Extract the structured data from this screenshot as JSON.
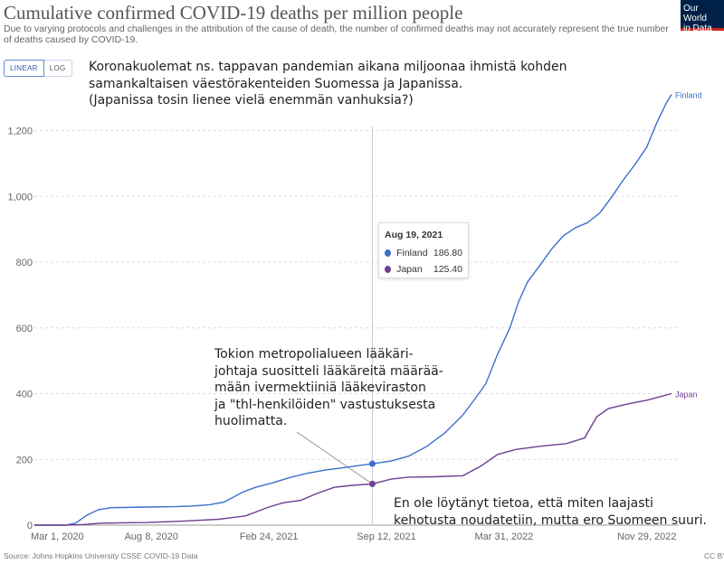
{
  "header": {
    "title": "Cumulative confirmed COVID-19 deaths per million people",
    "subtitle": "Due to varying protocols and challenges in the attribution of the cause of death, the number of confirmed deaths may not accurately represent the true number of deaths caused by COVID-19.",
    "logo_line1": "Our World",
    "logo_line2": "in Data"
  },
  "controls": {
    "linear_label": "LINEAR",
    "log_label": "LOG",
    "active": "linear"
  },
  "annotations": {
    "top": "Koronakuolemat ns. tappavan pandemian aikana miljoonaa ihmistä kohden\nsamankaltaisen väestörakenteiden Suomessa ja Japanissa.\n(Japanissa tosin lienee vielä enemmän vanhuksia?)",
    "middle": "Tokion metropolialueen lääkäri-\njohtaja suositteli lääkäreitä määrää-\nmään ivermektiiniä lääkeviraston\nja \"thl-henkilöiden\" vastustuksesta\nhuolimatta.",
    "bottom": "En ole löytänyt tietoa, että miten laajasti\nkehotusta noudatetiin, mutta ero Suomeen suuri."
  },
  "tooltip": {
    "date": "Aug 19, 2021",
    "rows": [
      {
        "name": "Finland",
        "value": "186.80",
        "color": "#3a6fcb"
      },
      {
        "name": "Japan",
        "value": "125.40",
        "color": "#6d3e91"
      }
    ]
  },
  "footer": {
    "source": "Source: Johns Hopkins University CSSE COVID-19 Data",
    "license": "CC BY"
  },
  "chart_data": {
    "type": "line",
    "xlabel": "",
    "ylabel": "",
    "ylim": [
      0,
      1300
    ],
    "yticks": [
      0,
      200,
      400,
      600,
      800,
      1000,
      1200
    ],
    "xticks": [
      "Mar 1, 2020",
      "Aug 8, 2020",
      "Feb 24, 2021",
      "Sep 12, 2021",
      "Mar 31, 2022",
      "Nov 29, 2022"
    ],
    "xrange": [
      "2020-01-22",
      "2023-01-10"
    ],
    "grid": "horizontal-dashed",
    "series": [
      {
        "name": "Finland",
        "color": "#3a6fcb",
        "points": [
          [
            "2020-01-22",
            0
          ],
          [
            "2020-03-15",
            0
          ],
          [
            "2020-04-01",
            6
          ],
          [
            "2020-04-20",
            30
          ],
          [
            "2020-05-10",
            47
          ],
          [
            "2020-06-01",
            53
          ],
          [
            "2020-08-01",
            55
          ],
          [
            "2020-09-15",
            56
          ],
          [
            "2020-10-15",
            58
          ],
          [
            "2020-11-15",
            62
          ],
          [
            "2020-12-10",
            70
          ],
          [
            "2021-01-10",
            100
          ],
          [
            "2021-02-01",
            115
          ],
          [
            "2021-03-01",
            128
          ],
          [
            "2021-04-01",
            145
          ],
          [
            "2021-05-01",
            158
          ],
          [
            "2021-06-01",
            168
          ],
          [
            "2021-07-01",
            175
          ],
          [
            "2021-08-19",
            186.8
          ],
          [
            "2021-09-20",
            195
          ],
          [
            "2021-10-20",
            210
          ],
          [
            "2021-11-20",
            240
          ],
          [
            "2021-12-20",
            280
          ],
          [
            "2022-01-20",
            335
          ],
          [
            "2022-02-10",
            385
          ],
          [
            "2022-02-28",
            430
          ],
          [
            "2022-03-20",
            520
          ],
          [
            "2022-04-10",
            600
          ],
          [
            "2022-04-25",
            680
          ],
          [
            "2022-05-10",
            740
          ],
          [
            "2022-05-31",
            790
          ],
          [
            "2022-06-20",
            840
          ],
          [
            "2022-07-10",
            880
          ],
          [
            "2022-07-31",
            905
          ],
          [
            "2022-08-20",
            920
          ],
          [
            "2022-09-10",
            950
          ],
          [
            "2022-10-01",
            1000
          ],
          [
            "2022-10-20",
            1050
          ],
          [
            "2022-11-10",
            1100
          ],
          [
            "2022-11-29",
            1150
          ],
          [
            "2022-12-15",
            1220
          ],
          [
            "2022-12-31",
            1280
          ],
          [
            "2023-01-10",
            1310
          ]
        ]
      },
      {
        "name": "Japan",
        "color": "#6d3e91",
        "points": [
          [
            "2020-01-22",
            0
          ],
          [
            "2020-03-15",
            0
          ],
          [
            "2020-04-15",
            2
          ],
          [
            "2020-05-15",
            6
          ],
          [
            "2020-08-01",
            8
          ],
          [
            "2020-10-01",
            12
          ],
          [
            "2020-12-01",
            18
          ],
          [
            "2021-01-15",
            28
          ],
          [
            "2021-02-24",
            55
          ],
          [
            "2021-03-20",
            68
          ],
          [
            "2021-04-20",
            76
          ],
          [
            "2021-05-15",
            95
          ],
          [
            "2021-06-15",
            115
          ],
          [
            "2021-07-15",
            121
          ],
          [
            "2021-08-19",
            125.4
          ],
          [
            "2021-09-20",
            140
          ],
          [
            "2021-10-20",
            146
          ],
          [
            "2021-12-01",
            147
          ],
          [
            "2022-01-20",
            150
          ],
          [
            "2022-02-20",
            180
          ],
          [
            "2022-03-20",
            215
          ],
          [
            "2022-04-20",
            230
          ],
          [
            "2022-06-01",
            240
          ],
          [
            "2022-07-15",
            248
          ],
          [
            "2022-08-15",
            265
          ],
          [
            "2022-09-05",
            330
          ],
          [
            "2022-09-25",
            355
          ],
          [
            "2022-10-31",
            370
          ],
          [
            "2022-11-29",
            380
          ],
          [
            "2022-12-20",
            390
          ],
          [
            "2023-01-10",
            400
          ]
        ]
      }
    ],
    "hover_date": "2021-08-19"
  }
}
